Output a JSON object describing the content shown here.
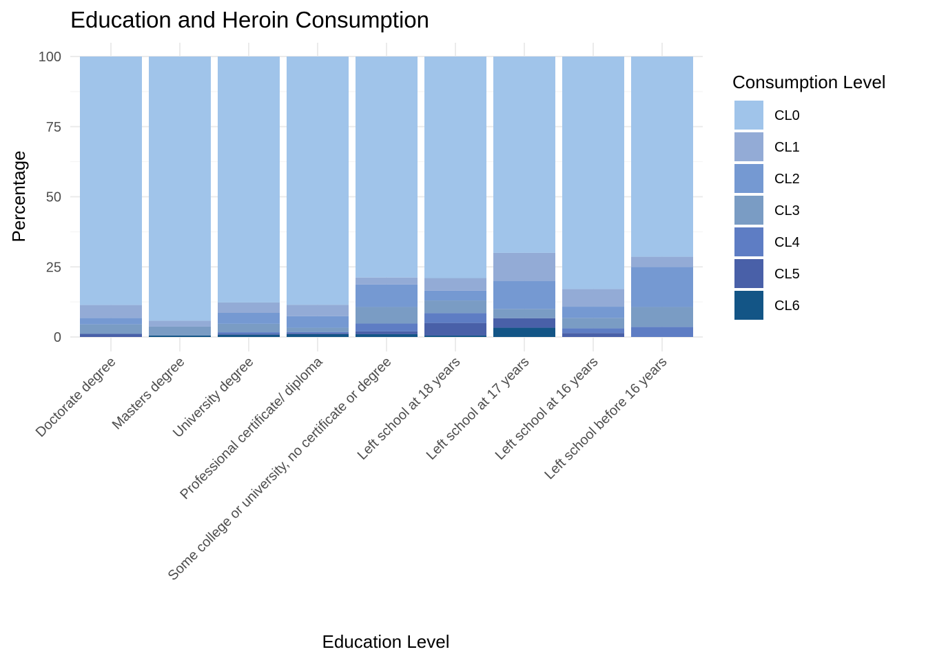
{
  "chart_data": {
    "type": "bar",
    "stacked": true,
    "title": "Education and Heroin Consumption",
    "xlabel": "Education Level",
    "ylabel": "Percentage",
    "ylim": [
      0,
      100
    ],
    "yticks": [
      0,
      25,
      50,
      75,
      100
    ],
    "grid": true,
    "legend_title": "Consumption Level",
    "legend_position": "right",
    "categories": [
      "Doctorate degree",
      "Masters degree",
      "University degree",
      "Professional certificate/ diploma",
      "Some college or university, no certificate or degree",
      "Left school at 18 years",
      "Left school at 17 years",
      "Left school at 16 years",
      "Left school before 16 years"
    ],
    "series": [
      {
        "name": "CL0",
        "color": "#A0C4EA",
        "values": [
          88.6,
          94.2,
          87.7,
          88.5,
          78.8,
          79.0,
          70.0,
          82.9,
          71.4
        ]
      },
      {
        "name": "CL1",
        "color": "#93ABD6",
        "values": [
          4.6,
          2.1,
          3.7,
          4.1,
          2.5,
          4.5,
          10.0,
          6.3,
          3.6
        ]
      },
      {
        "name": "CL2",
        "color": "#7599D2",
        "values": [
          2.3,
          0.0,
          3.9,
          4.1,
          8.0,
          3.5,
          10.0,
          4.0,
          14.3
        ]
      },
      {
        "name": "CL3",
        "color": "#7A9CC4",
        "values": [
          3.4,
          3.2,
          3.0,
          1.5,
          5.9,
          4.5,
          3.3,
          3.7,
          7.1
        ]
      },
      {
        "name": "CL4",
        "color": "#5E7DC4",
        "values": [
          0.0,
          0.0,
          0.6,
          0.4,
          2.8,
          3.5,
          0.0,
          1.7,
          3.6
        ]
      },
      {
        "name": "CL5",
        "color": "#4960A8",
        "values": [
          1.1,
          0.0,
          0.3,
          0.4,
          1.0,
          4.5,
          3.4,
          1.4,
          0.0
        ]
      },
      {
        "name": "CL6",
        "color": "#135586",
        "values": [
          0.0,
          0.5,
          0.8,
          1.0,
          1.0,
          0.5,
          3.3,
          0.0,
          0.0
        ]
      }
    ]
  }
}
